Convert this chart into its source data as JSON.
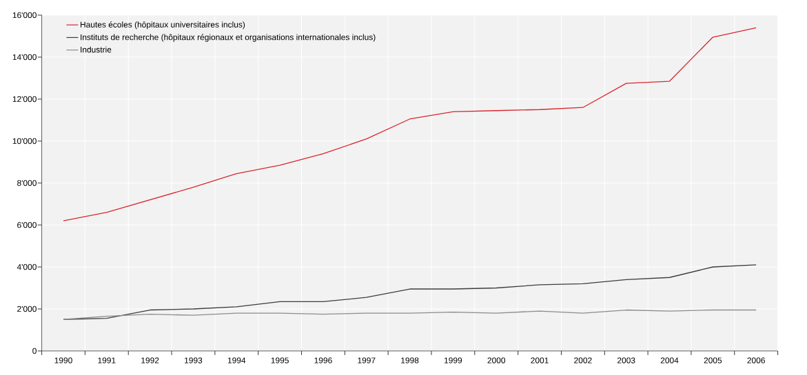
{
  "chart_data": {
    "type": "line",
    "categories": [
      "1990",
      "1991",
      "1992",
      "1993",
      "1994",
      "1995",
      "1996",
      "1997",
      "1998",
      "1999",
      "2000",
      "2001",
      "2002",
      "2003",
      "2004",
      "2005",
      "2006"
    ],
    "series": [
      {
        "name": "Hautes écoles (hôpitaux universitaires inclus)",
        "color": "#d9262e",
        "values": [
          6200,
          6600,
          7200,
          7800,
          8450,
          8850,
          9400,
          10100,
          11050,
          11400,
          11450,
          11500,
          11600,
          12750,
          12850,
          14950,
          15400
        ]
      },
      {
        "name": "Instituts de recherche (hôpitaux régionaux et organisations internationales inclus)",
        "color": "#3c3c3c",
        "values": [
          1500,
          1550,
          1950,
          2000,
          2100,
          2350,
          2350,
          2550,
          2950,
          2950,
          3000,
          3150,
          3200,
          3400,
          3500,
          4000,
          4100
        ]
      },
      {
        "name": "Industrie",
        "color": "#8c8c8c",
        "values": [
          1500,
          1650,
          1750,
          1700,
          1800,
          1800,
          1750,
          1800,
          1800,
          1850,
          1800,
          1900,
          1800,
          1950,
          1900,
          1950,
          1950
        ]
      }
    ],
    "ylim": [
      0,
      16000
    ],
    "yticks": [
      0,
      {
        "value": 2000,
        "label": "2'000"
      },
      {
        "value": 4000,
        "label": "4'000"
      },
      {
        "value": 6000,
        "label": "6'000"
      },
      {
        "value": 8000,
        "label": "8'000"
      },
      {
        "value": 10000,
        "label": "10'000"
      },
      {
        "value": 12000,
        "label": "12'000"
      },
      {
        "value": 14000,
        "label": "14'000"
      },
      {
        "value": 16000,
        "label": "16'000"
      }
    ],
    "grid": true,
    "legend": "top left",
    "marker": "none",
    "line_style": "solid"
  }
}
